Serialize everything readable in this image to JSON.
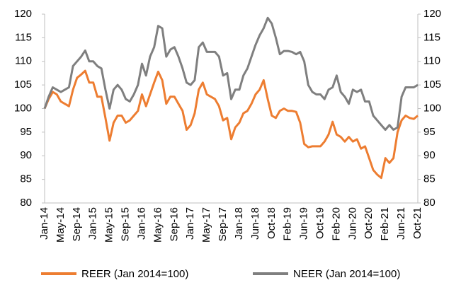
{
  "chart_data": {
    "type": "line",
    "categories": [
      "Jan-14",
      null,
      null,
      null,
      "May-14",
      null,
      null,
      null,
      "Sep-14",
      null,
      null,
      null,
      "Jan-15",
      null,
      null,
      null,
      "May-15",
      null,
      null,
      null,
      "Sep-15",
      null,
      null,
      null,
      "Jan-16",
      null,
      null,
      null,
      "May-16",
      null,
      null,
      null,
      "Sep-16",
      null,
      null,
      null,
      "Jan-17",
      null,
      null,
      null,
      "May-17",
      null,
      null,
      null,
      "Sep-17",
      null,
      null,
      null,
      "Jan-18",
      null,
      null,
      null,
      "Jun-18",
      null,
      null,
      null,
      "Oct-18",
      null,
      null,
      null,
      "Feb-19",
      null,
      null,
      null,
      "Jun-19",
      null,
      null,
      null,
      "Oct-19",
      null,
      null,
      null,
      "Feb-20",
      null,
      null,
      null,
      "Jun-20",
      null,
      null,
      null,
      "Oct-20",
      null,
      null,
      null,
      "Feb-21",
      null,
      null,
      null,
      "Jun-21",
      null,
      null,
      null,
      "Oct-21"
    ],
    "series": [
      {
        "name": "REER (Jan 2014=100)",
        "color": "#ED7D31",
        "values": [
          100,
          102,
          103.5,
          103,
          101.5,
          101,
          100.5,
          104,
          106.5,
          107.2,
          108,
          105.5,
          105.5,
          102.5,
          102.5,
          98,
          93.2,
          97,
          98.5,
          98.5,
          97,
          97.5,
          98.5,
          99.5,
          103,
          100.5,
          103,
          105.5,
          107.8,
          106,
          101,
          102.5,
          102.5,
          101,
          99.5,
          95.5,
          96.5,
          99,
          104,
          105.5,
          103,
          102.5,
          102,
          100.5,
          97.5,
          98,
          93.5,
          96,
          97,
          99,
          99.5,
          101,
          103,
          104,
          106,
          102,
          98.5,
          98,
          99.5,
          100,
          99.5,
          99.5,
          99.3,
          97,
          92.5,
          91.8,
          92,
          92,
          92,
          93,
          94.5,
          97.2,
          94.5,
          94,
          93,
          94,
          93,
          93.5,
          91.5,
          92,
          89.5,
          87,
          86,
          85.3,
          89.5,
          88.5,
          89.5,
          95,
          97.5,
          98.5,
          98,
          97.8,
          98.5
        ]
      },
      {
        "name": "NEER (Jan 2014=100)",
        "color": "#7F7F7F",
        "values": [
          100,
          102.5,
          104.5,
          104,
          103.5,
          104,
          104.5,
          109,
          110,
          111,
          112.3,
          110,
          110,
          109,
          108.5,
          104,
          100,
          104,
          105,
          104,
          102,
          101.5,
          103,
          105,
          109.5,
          107,
          111,
          113,
          117.5,
          117,
          111,
          112.5,
          113,
          111,
          108.5,
          105.5,
          105,
          106,
          113,
          114,
          112,
          112,
          112,
          111,
          107,
          107.5,
          102,
          104,
          104,
          107,
          108.5,
          111,
          113.5,
          115.5,
          117,
          119.2,
          118,
          115,
          111.5,
          112.2,
          112.2,
          112,
          111.5,
          112,
          110,
          105,
          103.5,
          103,
          103,
          102,
          104,
          104.5,
          107,
          103.5,
          102.5,
          101,
          104,
          103.5,
          104,
          101.5,
          101.5,
          98.5,
          97.5,
          96.5,
          95.5,
          96.5,
          95.5,
          96,
          102.5,
          104.5,
          104.5,
          104.5,
          105
        ]
      }
    ],
    "ylim": [
      80,
      120
    ],
    "yticks": [
      80,
      85,
      90,
      95,
      100,
      105,
      110,
      115,
      120
    ],
    "y2lim": [
      80,
      120
    ],
    "y2ticks": [
      80,
      85,
      90,
      95,
      100,
      105,
      110,
      115,
      120
    ]
  }
}
